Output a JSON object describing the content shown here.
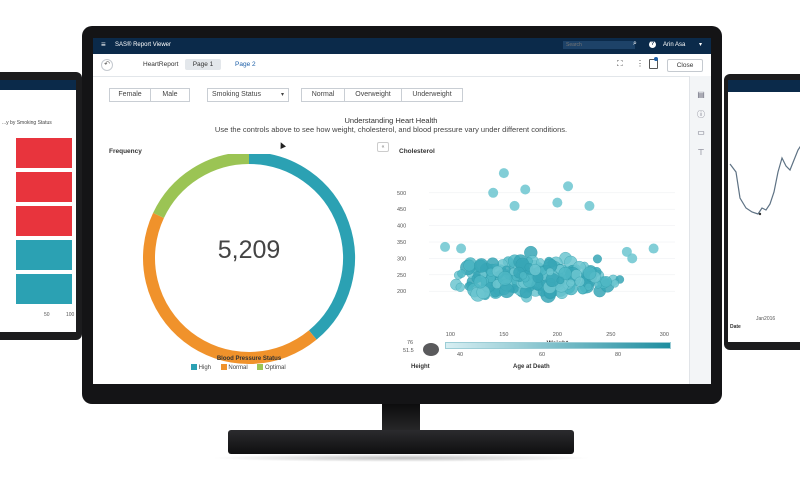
{
  "appbar": {
    "title": "SAS® Report Viewer",
    "search_placeholder": "Search",
    "user": "Arin Asa"
  },
  "toolbar": {
    "report_name": "HeartReport",
    "tabs": [
      {
        "label": "Page 1"
      },
      {
        "label": "Page 2"
      }
    ],
    "close_label": "Close"
  },
  "filters": {
    "gender": [
      "Female",
      "Male"
    ],
    "smoking_select": "Smoking Status",
    "weight_status": [
      "Normal",
      "Overweight",
      "Underweight"
    ]
  },
  "report": {
    "title": "Understanding Heart Health",
    "subtitle": "Use the controls above to see how weight, cholesterol, and blood pressure vary under different conditions."
  },
  "left_monitor": {
    "title": "...y by Smoking Status",
    "ticks": [
      "50",
      "100"
    ]
  },
  "right_monitor": {
    "tick": "Jan2016",
    "axis_label": "Date"
  },
  "colors": {
    "teal": "#2ba1b3",
    "orange": "#f0922b",
    "green": "#9bc454",
    "red": "#e8343d",
    "navy": "#0b2a4a"
  },
  "chart_data": [
    {
      "type": "pie",
      "title": "Frequency",
      "center_value": "5,209",
      "legend_title": "Blood Pressure Status",
      "slices": [
        {
          "name": "High",
          "value": 0.39,
          "color": "#2ba1b3"
        },
        {
          "name": "Normal",
          "value": 0.43,
          "color": "#f0922b"
        },
        {
          "name": "Optimal",
          "value": 0.18,
          "color": "#9bc454"
        }
      ]
    },
    {
      "type": "scatter",
      "ylabel": "Cholesterol",
      "xlabel": "Weight",
      "xlim": [
        80,
        310
      ],
      "ylim": [
        100,
        600
      ],
      "xticks": [
        "100",
        "150",
        "200",
        "250",
        "300"
      ],
      "yticks": [
        "200",
        "250",
        "300",
        "350",
        "400",
        "450",
        "500"
      ],
      "slider": {
        "label": "Age at Death",
        "ticks": [
          "40",
          "60",
          "80"
        ],
        "height_label": "Height",
        "height_ticks": [
          "76",
          "51.5"
        ]
      }
    }
  ]
}
